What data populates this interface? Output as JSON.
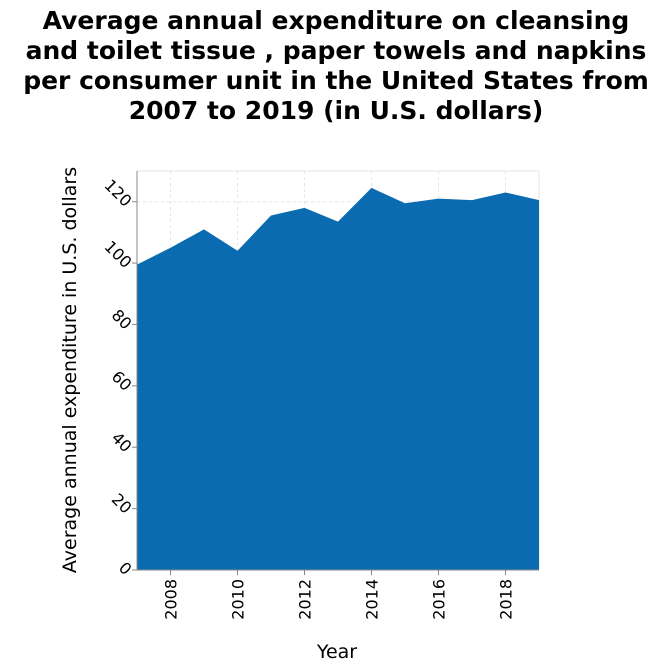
{
  "chart_data": {
    "type": "area",
    "title_lines": [
      "Average annual expenditure on cleansing",
      "and toilet tissue , paper towels and napkins",
      "per consumer unit in the United States from",
      "2007 to 2019 (in U.S. dollars)"
    ],
    "xlabel": "Year",
    "ylabel": "Average annual expenditure in U.S. dollars",
    "x": [
      2007,
      2008,
      2009,
      2010,
      2011,
      2012,
      2013,
      2014,
      2015,
      2016,
      2017,
      2018,
      2019
    ],
    "values": [
      99.5,
      105,
      111,
      104,
      115.5,
      118,
      113.5,
      124.5,
      119.5,
      121,
      120.5,
      123,
      120.5
    ],
    "xlim": [
      2007,
      2019
    ],
    "ylim": [
      0,
      130
    ],
    "xticks": [
      "2008",
      "2010",
      "2012",
      "2014",
      "2016",
      "2018"
    ],
    "yticks": [
      "0",
      "20",
      "40",
      "60",
      "80",
      "100",
      "120"
    ],
    "grid": true,
    "fill_color": "#0b6bb0"
  }
}
